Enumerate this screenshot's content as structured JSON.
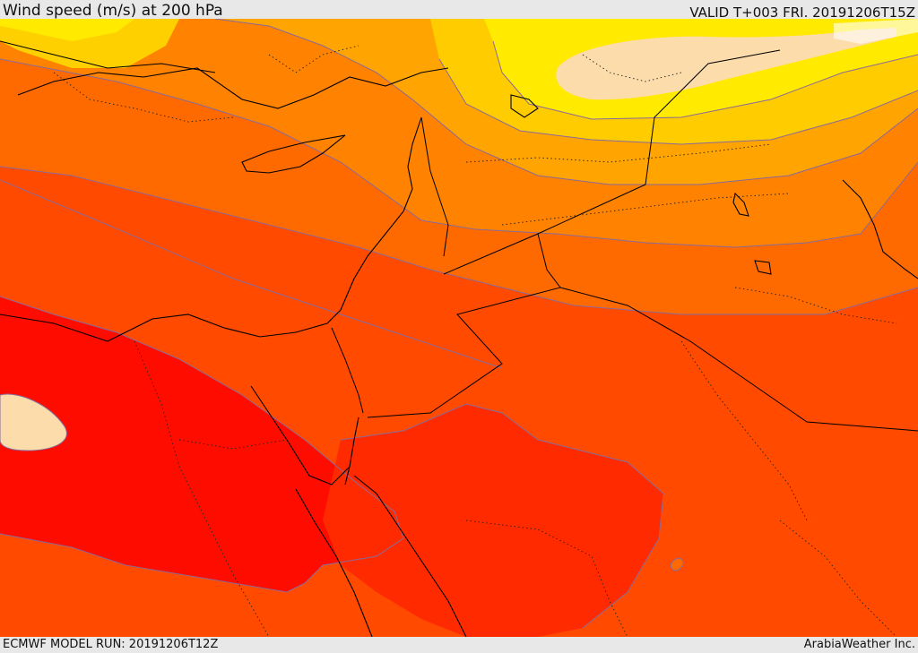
{
  "header": {
    "title": "Wind speed (m/s) at 200 hPa",
    "valid": "VALID T+003 FRI. 20191206T15Z"
  },
  "footer": {
    "model_run": "ECMWF MODEL RUN: 20191206T12Z",
    "credit": "ArabiaWeather Inc."
  },
  "colors": {
    "speed_band_1": "#fff9c8",
    "speed_band_2": "#ffea00",
    "speed_band_3": "#ffcc00",
    "speed_band_4": "#ffa400",
    "speed_band_5": "#ff8200",
    "speed_band_6": "#ff6a00",
    "speed_band_7": "#ff4a00",
    "speed_band_8": "#ff2a00",
    "speed_band_9": "#ff0c00",
    "speed_max_cell": "#fbdcaa",
    "contour": "#8a6a9a",
    "coastline": "#000000"
  }
}
